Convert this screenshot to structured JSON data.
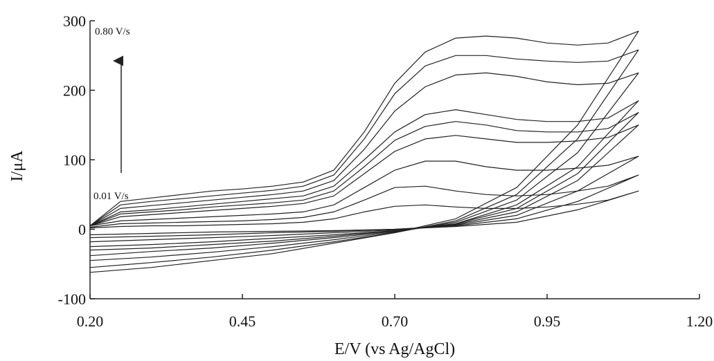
{
  "chart_data": {
    "type": "line",
    "x_label": "E/V (vs Ag/AgCl)",
    "y_label": "I/μA",
    "annotations": [
      "0.80 V/s",
      "0.01 V/s"
    ],
    "x": [
      0.2,
      0.25,
      0.3,
      0.35,
      0.4,
      0.45,
      0.5,
      0.55,
      0.6,
      0.65,
      0.7,
      0.75,
      0.8,
      0.85,
      0.9,
      0.95,
      1.0,
      1.05,
      1.1,
      1.0,
      0.9,
      0.8,
      0.7,
      0.6,
      0.5,
      0.4,
      0.3,
      0.2
    ],
    "series": [
      {
        "color": "#222222",
        "values": [
          5,
          40,
          45,
          50,
          55,
          58,
          62,
          68,
          85,
          140,
          210,
          255,
          275,
          278,
          275,
          268,
          265,
          268,
          285,
          150,
          60,
          15,
          -5,
          -20,
          -35,
          -45,
          -55,
          -62
        ]
      },
      {
        "color": "#222222",
        "values": [
          5,
          35,
          40,
          44,
          48,
          52,
          56,
          62,
          78,
          130,
          195,
          235,
          250,
          250,
          245,
          242,
          240,
          242,
          258,
          130,
          50,
          12,
          -5,
          -18,
          -30,
          -40,
          -48,
          -55
        ]
      },
      {
        "color": "#222222",
        "values": [
          5,
          30,
          34,
          38,
          42,
          46,
          50,
          55,
          70,
          115,
          170,
          205,
          222,
          225,
          220,
          212,
          208,
          210,
          225,
          110,
          42,
          10,
          -4,
          -15,
          -25,
          -33,
          -40,
          -45
        ]
      },
      {
        "color": "#222222",
        "values": [
          5,
          25,
          28,
          32,
          36,
          40,
          44,
          48,
          62,
          100,
          140,
          165,
          172,
          165,
          158,
          155,
          155,
          160,
          185,
          90,
          35,
          8,
          -3,
          -12,
          -20,
          -27,
          -32,
          -38
        ]
      },
      {
        "color": "#222222",
        "values": [
          5,
          22,
          25,
          28,
          32,
          35,
          38,
          42,
          55,
          90,
          128,
          148,
          155,
          150,
          142,
          140,
          140,
          145,
          168,
          80,
          30,
          8,
          -2,
          -10,
          -17,
          -22,
          -27,
          -30
        ]
      },
      {
        "color": "#222222",
        "values": [
          5,
          18,
          21,
          24,
          27,
          30,
          33,
          37,
          48,
          80,
          112,
          130,
          135,
          130,
          125,
          125,
          127,
          132,
          150,
          70,
          25,
          7,
          -2,
          -8,
          -13,
          -18,
          -22,
          -25
        ]
      },
      {
        "color": "#222222",
        "values": [
          5,
          12,
          14,
          16,
          18,
          20,
          22,
          25,
          35,
          60,
          85,
          98,
          98,
          90,
          85,
          85,
          88,
          92,
          105,
          55,
          20,
          6,
          -1,
          -5,
          -9,
          -12,
          -15,
          -18
        ]
      },
      {
        "color": "#222222",
        "values": [
          3,
          8,
          9,
          10,
          11,
          12,
          14,
          17,
          25,
          42,
          60,
          62,
          55,
          50,
          48,
          50,
          55,
          62,
          78,
          40,
          15,
          5,
          0,
          -3,
          -5,
          -8,
          -10,
          -12
        ]
      },
      {
        "color": "#222222",
        "values": [
          2,
          4,
          5,
          5,
          6,
          7,
          8,
          10,
          15,
          25,
          33,
          35,
          32,
          30,
          30,
          32,
          36,
          42,
          55,
          28,
          10,
          4,
          0,
          -2,
          -3,
          -4,
          -6,
          -8
        ]
      }
    ],
    "xlim": [
      0.2,
      1.2
    ],
    "xticks": [
      {
        "value": 0.2,
        "label": "0.20"
      },
      {
        "value": 0.45,
        "label": "0.45"
      },
      {
        "value": 0.7,
        "label": "0.70"
      },
      {
        "value": 0.95,
        "label": "0.95"
      },
      {
        "value": 1.2,
        "label": "1.20"
      }
    ],
    "ylim": [
      -100,
      300
    ],
    "yticks": [
      -100,
      0,
      100,
      200,
      300
    ]
  }
}
